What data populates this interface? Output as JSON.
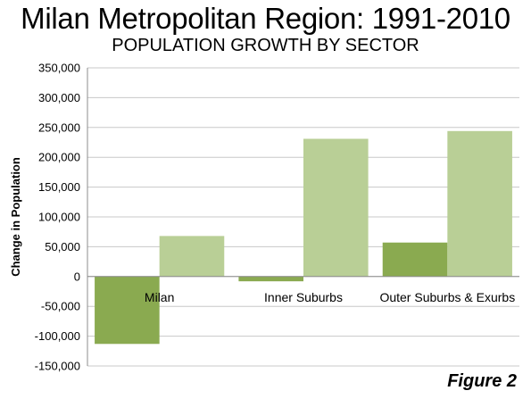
{
  "title": "Milan Metropolitan Region: 1991-2010",
  "subtitle": "POPULATION GROWTH BY SECTOR",
  "figure_label": "Figure 2",
  "chart_data": {
    "type": "bar",
    "title": "Milan Metropolitan Region: 1991-2010",
    "subtitle": "POPULATION GROWTH BY SECTOR",
    "xlabel": "",
    "ylabel": "Change in Population",
    "ylim": [
      -150000,
      350000
    ],
    "yticks": [
      350000,
      300000,
      250000,
      200000,
      150000,
      100000,
      50000,
      0,
      -50000,
      -100000,
      -150000
    ],
    "ytick_labels": [
      "350,000",
      "300,000",
      "250,000",
      "200,000",
      "150,000",
      "100,000",
      "50,000",
      "0",
      "-50,000",
      "-100,000",
      "-150,000"
    ],
    "categories": [
      "Milan",
      "Inner Suburbs",
      "Outer Suburbs & Exurbs"
    ],
    "series": [
      {
        "color": "#8aaa50",
        "values": [
          -113000,
          -8000,
          57000
        ]
      },
      {
        "color": "#b9cf96",
        "values": [
          68000,
          231000,
          244000
        ]
      }
    ],
    "grid": true,
    "legend": "none"
  }
}
